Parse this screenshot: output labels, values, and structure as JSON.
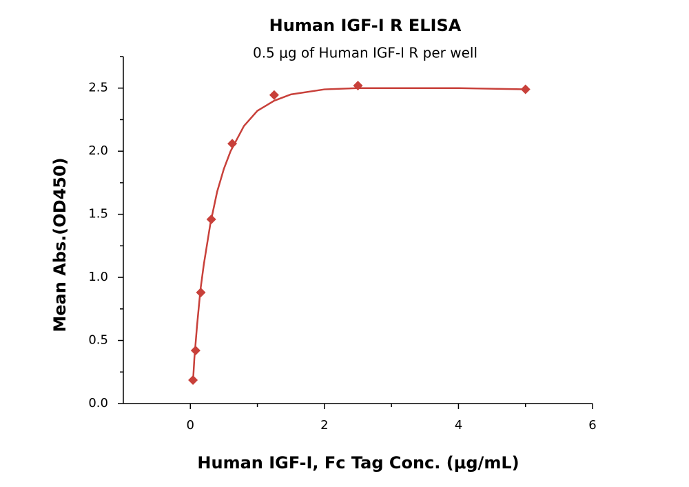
{
  "chart_data": {
    "type": "scatter",
    "title": "Human IGF-I R ELISA",
    "subtitle": "0.5 μg of Human IGF-I R per well",
    "x_label": "Human IGF-I, Fc Tag Conc. (μg/mL)",
    "y_label": "Mean Abs.(OD450)",
    "xlim": [
      -1,
      6
    ],
    "xticks": [
      0,
      2,
      4,
      6
    ],
    "xticks_minor": [
      1,
      3,
      5
    ],
    "ylim": [
      0,
      2.75
    ],
    "yticks": [
      {
        "value": 0,
        "label": "0.0"
      },
      {
        "value": 0.5,
        "label": "0.5"
      },
      {
        "value": 1,
        "label": "1.0"
      },
      {
        "value": 1.5,
        "label": "1.5"
      },
      {
        "value": 2,
        "label": "2.0"
      },
      {
        "value": 2.5,
        "label": "2.5"
      }
    ],
    "yticks_minor": [
      0.25,
      0.75,
      1.25,
      1.75,
      2.25,
      2.75
    ],
    "grid": false,
    "series": [
      {
        "type": "line",
        "color": "#c8403a",
        "x": [
          0.039,
          0.06,
          0.1,
          0.15,
          0.2,
          0.3,
          0.4,
          0.5,
          0.6,
          0.8,
          1.0,
          1.25,
          1.5,
          2,
          2.5,
          3,
          4,
          5
        ],
        "values": [
          0.17,
          0.36,
          0.62,
          0.9,
          1.1,
          1.43,
          1.68,
          1.86,
          2.0,
          2.2,
          2.32,
          2.4,
          2.45,
          2.49,
          2.5,
          2.5,
          2.5,
          2.49
        ]
      },
      {
        "type": "scatter",
        "color": "#c8403a",
        "x": [
          0.039,
          0.078,
          0.156,
          0.3125,
          0.625,
          1.25,
          2.5,
          5
        ],
        "values": [
          0.186,
          0.42,
          0.88,
          1.46,
          2.06,
          2.445,
          2.52,
          2.49
        ]
      }
    ]
  }
}
